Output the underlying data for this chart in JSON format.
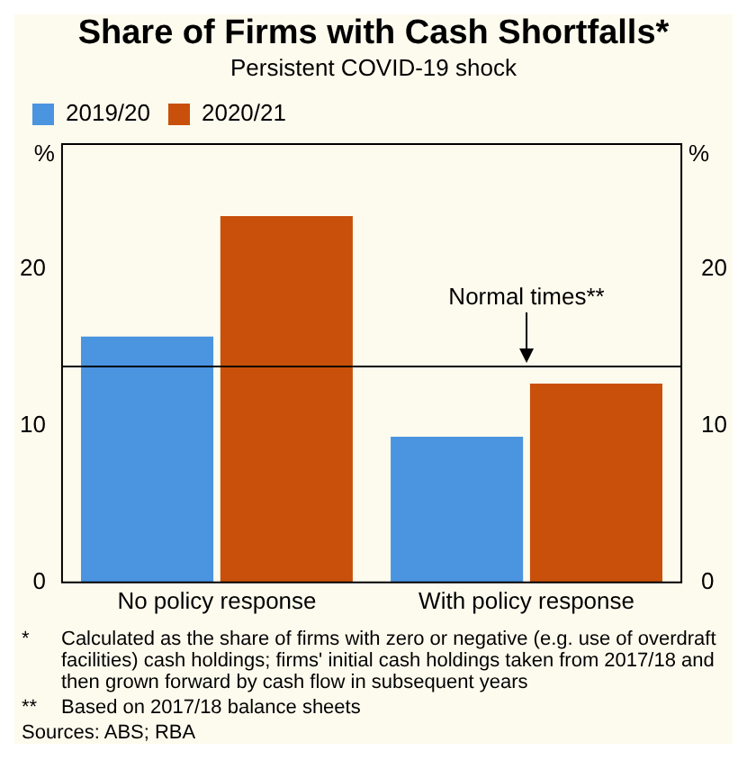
{
  "chart_data": {
    "type": "bar",
    "title": "Share of Firms with Cash Shortfalls*",
    "subtitle": "Persistent COVID-19 shock",
    "ylabel": "%",
    "y2label": "%",
    "categories": [
      "No policy response",
      "With policy response"
    ],
    "series": [
      {
        "name": "2019/20",
        "color": "#4a94e0",
        "values": [
          15.7,
          9.3
        ]
      },
      {
        "name": "2020/21",
        "color": "#c9500a",
        "values": [
          23.4,
          12.7
        ]
      }
    ],
    "ylim": [
      0,
      28
    ],
    "yticks": [
      0,
      10,
      20
    ],
    "y2lim": [
      0,
      28
    ],
    "y2ticks": [
      0,
      10,
      20
    ],
    "ref_lines": [
      {
        "axis": "y",
        "value": 13.8,
        "label": "Normal times**",
        "color": "#000000"
      }
    ],
    "legend": "top left",
    "grid": false,
    "annotations": [
      "* Calculated as the share of firms with zero or negative (e.g. use of overdraft facilities) cash holdings; firms' initial cash holdings taken from 2017/18 and then grown forward by cash flow in subsequent years",
      "** Based on 2017/18 balance sheets",
      "Sources: ABS; RBA"
    ]
  }
}
